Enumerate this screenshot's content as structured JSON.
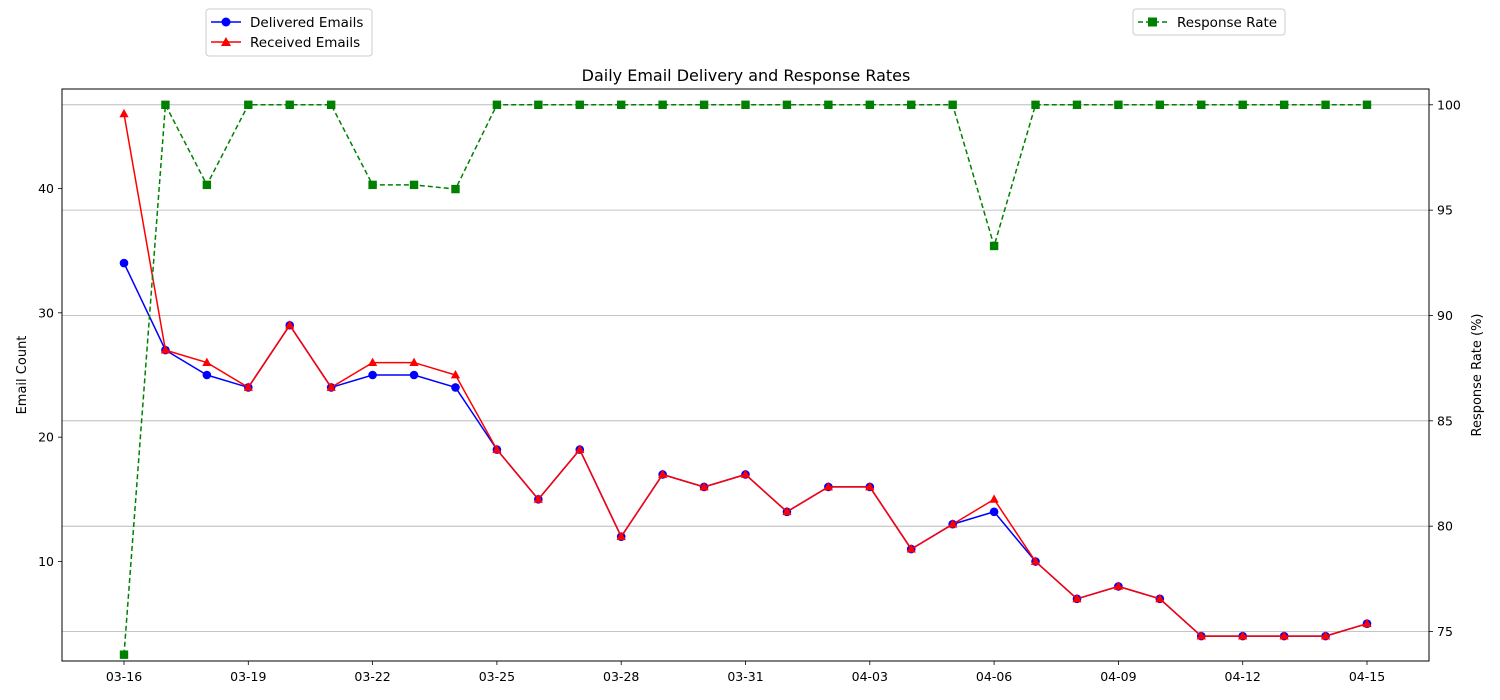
{
  "chart_data": {
    "type": "line",
    "title": "Daily Email Delivery and Response Rates",
    "xlabel": "",
    "ylabel": "Email Count",
    "y2label": "Response Rate (%)",
    "x": [
      "03-16",
      "03-17",
      "03-18",
      "03-19",
      "03-20",
      "03-21",
      "03-22",
      "03-23",
      "03-24",
      "03-25",
      "03-26",
      "03-27",
      "03-28",
      "03-29",
      "03-30",
      "03-31",
      "04-01",
      "04-02",
      "04-03",
      "04-04",
      "04-05",
      "04-06",
      "04-07",
      "04-08",
      "04-09",
      "04-10",
      "04-11",
      "04-12",
      "04-13",
      "04-14",
      "04-15"
    ],
    "x_tick_labels": [
      "03-16",
      "03-19",
      "03-22",
      "03-25",
      "03-28",
      "03-31",
      "04-03",
      "04-06",
      "04-09",
      "04-12",
      "04-15"
    ],
    "ylim": [
      2,
      48
    ],
    "y_ticks": [
      10,
      20,
      30,
      40
    ],
    "y2lim": [
      73.6,
      100.75
    ],
    "y2_ticks": [
      75,
      80,
      85,
      90,
      95,
      100
    ],
    "grid": "horizontal lines at right-axis ticks",
    "series": [
      {
        "name": "Delivered Emails",
        "axis": "left",
        "color": "#0000ff",
        "marker": "circle",
        "linestyle": "solid",
        "values": [
          34,
          27,
          25,
          24,
          29,
          24,
          25,
          25,
          24,
          19,
          15,
          19,
          12,
          17,
          16,
          17,
          14,
          16,
          16,
          11,
          13,
          14,
          10,
          7,
          8,
          7,
          4,
          4,
          4,
          4,
          5
        ]
      },
      {
        "name": "Received Emails",
        "axis": "left",
        "color": "#ff0000",
        "marker": "triangle",
        "linestyle": "solid",
        "values": [
          46,
          27,
          26,
          24,
          29,
          24,
          26,
          26,
          25,
          19,
          15,
          19,
          12,
          17,
          16,
          17,
          14,
          16,
          16,
          11,
          13,
          15,
          10,
          7,
          8,
          7,
          4,
          4,
          4,
          4,
          5
        ]
      },
      {
        "name": "Response Rate",
        "axis": "right",
        "color": "#008000",
        "marker": "square",
        "linestyle": "dashed",
        "values": [
          73.9,
          100,
          96.2,
          100,
          100,
          100,
          96.2,
          96.2,
          96.0,
          100,
          100,
          100,
          100,
          100,
          100,
          100,
          100,
          100,
          100,
          100,
          100,
          93.3,
          100,
          100,
          100,
          100,
          100,
          100,
          100,
          100,
          100
        ]
      }
    ],
    "legends": [
      {
        "placement": "top-left",
        "entries": [
          "Delivered Emails",
          "Received Emails"
        ]
      },
      {
        "placement": "top-right",
        "entries": [
          "Response Rate"
        ]
      }
    ]
  }
}
